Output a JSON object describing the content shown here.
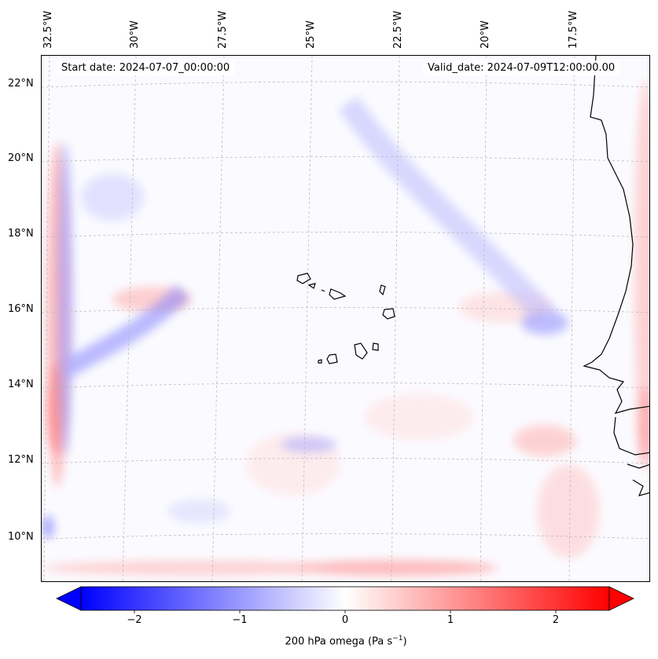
{
  "map": {
    "start_date": "Start date: 2024-07-07_00:00:00",
    "valid_date": "Valid_date: 2024-07-09T12:00:00.00",
    "longitude_labels": [
      "32.5°W",
      "30°W",
      "27.5°W",
      "25°W",
      "22.5°W",
      "20°W",
      "17.5°W"
    ],
    "latitude_labels": [
      "22°N",
      "20°N",
      "18°N",
      "16°N",
      "14°N",
      "12°N",
      "10°N"
    ]
  },
  "colorbar": {
    "label_text": "200 hPa omega (Pa s",
    "label_exp": "−1",
    "label_close": ")",
    "ticks": [
      "−2",
      "−1",
      "0",
      "1",
      "2"
    ],
    "colors": {
      "negative": "#0000ff",
      "neutral": "#ffffff",
      "positive": "#ff0000"
    }
  }
}
